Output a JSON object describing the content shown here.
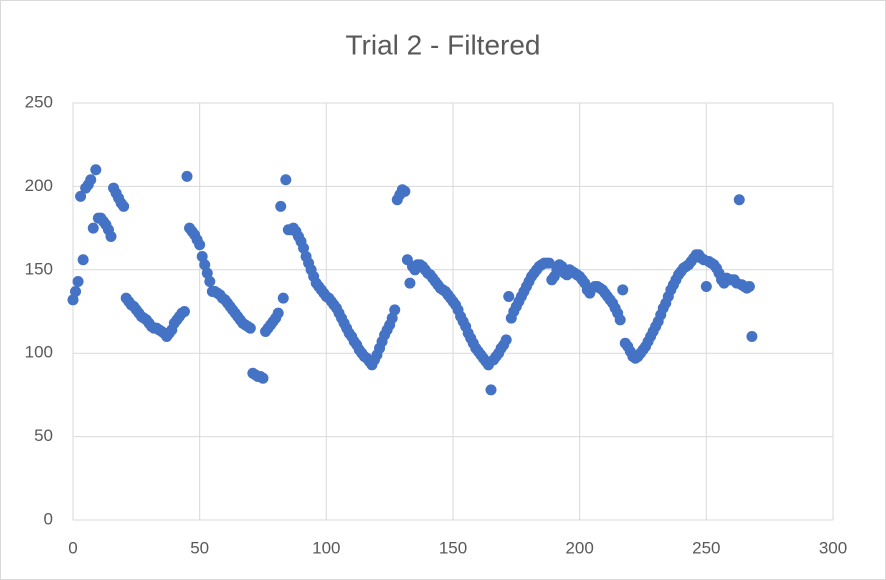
{
  "chart_data": {
    "type": "scatter",
    "title": "Trial 2 - Filtered",
    "x": [
      0,
      1,
      2,
      3,
      4,
      5,
      6,
      7,
      8,
      9,
      10,
      11,
      12,
      13,
      14,
      15,
      16,
      17,
      18,
      19,
      20,
      21,
      22,
      23,
      24,
      25,
      26,
      27,
      28,
      29,
      30,
      31,
      32,
      33,
      34,
      35,
      36,
      37,
      38,
      39,
      40,
      41,
      42,
      43,
      44,
      45,
      46,
      47,
      48,
      49,
      50,
      51,
      52,
      53,
      54,
      55,
      56,
      57,
      58,
      59,
      60,
      61,
      62,
      63,
      64,
      65,
      66,
      67,
      68,
      69,
      70,
      71,
      72,
      73,
      74,
      75,
      76,
      77,
      78,
      79,
      80,
      81,
      82,
      83,
      84,
      85,
      86,
      87,
      88,
      89,
      90,
      91,
      92,
      93,
      94,
      95,
      96,
      97,
      98,
      99,
      100,
      101,
      102,
      103,
      104,
      105,
      106,
      107,
      108,
      109,
      110,
      111,
      112,
      113,
      114,
      115,
      116,
      117,
      118,
      119,
      120,
      121,
      122,
      123,
      124,
      125,
      126,
      127,
      128,
      129,
      130,
      131,
      132,
      133,
      134,
      135,
      136,
      137,
      138,
      139,
      140,
      141,
      142,
      143,
      144,
      145,
      146,
      147,
      148,
      149,
      150,
      151,
      152,
      153,
      154,
      155,
      156,
      157,
      158,
      159,
      160,
      161,
      162,
      163,
      164,
      165,
      166,
      167,
      168,
      169,
      170,
      171,
      172,
      173,
      174,
      175,
      176,
      177,
      178,
      179,
      180,
      181,
      182,
      183,
      184,
      185,
      186,
      187,
      188,
      189,
      190,
      191,
      192,
      193,
      194,
      195,
      196,
      197,
      198,
      199,
      200,
      201,
      202,
      203,
      204,
      205,
      206,
      207,
      208,
      209,
      210,
      211,
      212,
      213,
      214,
      215,
      216,
      217,
      218,
      219,
      220,
      221,
      222,
      223,
      224,
      225,
      226,
      227,
      228,
      229,
      230,
      231,
      232,
      233,
      234,
      235,
      236,
      237,
      238,
      239,
      240,
      241,
      242,
      243,
      244,
      245,
      246,
      247,
      248,
      249,
      250,
      251,
      252,
      253,
      254,
      255,
      256,
      257,
      258,
      259,
      260,
      261,
      262,
      263,
      264,
      265,
      266,
      267,
      268
    ],
    "series": [
      {
        "color": "#4472c4",
        "values": [
          132,
          137,
          143,
          194,
          156,
          199,
          201,
          204,
          175,
          210,
          181,
          181,
          179,
          177,
          174,
          170,
          199,
          196,
          193,
          190,
          188,
          133,
          131,
          129,
          128,
          126,
          124,
          122,
          121,
          120,
          118,
          116,
          115,
          115,
          114,
          113,
          112,
          110,
          112,
          114,
          118,
          120,
          122,
          124,
          125,
          206,
          175,
          173,
          171,
          168,
          165,
          158,
          153,
          148,
          143,
          137,
          137,
          136,
          135,
          133,
          132,
          130,
          128,
          126,
          124,
          122,
          120,
          118,
          117,
          116,
          115,
          88,
          87,
          86,
          86,
          85,
          113,
          115,
          117,
          119,
          121,
          124,
          188,
          133,
          204,
          174,
          174,
          175,
          173,
          170,
          167,
          163,
          158,
          154,
          150,
          146,
          142,
          140,
          138,
          136,
          134,
          133,
          131,
          129,
          127,
          124,
          121,
          118,
          115,
          112,
          110,
          107,
          105,
          102,
          100,
          98,
          97,
          95,
          93,
          96,
          99,
          103,
          107,
          111,
          114,
          117,
          121,
          126,
          192,
          195,
          198,
          197,
          156,
          142,
          152,
          150,
          153,
          153,
          152,
          150,
          148,
          147,
          145,
          143,
          141,
          139,
          138,
          137,
          135,
          133,
          131,
          129,
          126,
          122,
          119,
          116,
          112,
          109,
          106,
          103,
          101,
          99,
          97,
          95,
          93,
          78,
          96,
          98,
          100,
          103,
          105,
          108,
          134,
          121,
          125,
          128,
          131,
          134,
          137,
          140,
          143,
          146,
          148,
          150,
          152,
          153,
          154,
          154,
          154,
          144,
          146,
          150,
          153,
          152,
          148,
          147,
          150,
          149,
          148,
          147,
          146,
          144,
          142,
          138,
          136,
          139,
          140,
          140,
          139,
          138,
          136,
          134,
          132,
          130,
          127,
          124,
          120,
          138,
          106,
          104,
          101,
          98,
          97,
          98,
          100,
          102,
          104,
          107,
          110,
          113,
          116,
          119,
          123,
          127,
          130,
          134,
          138,
          141,
          144,
          147,
          149,
          151,
          152,
          153,
          155,
          157,
          159,
          159,
          157,
          156,
          140,
          155,
          154,
          153,
          151,
          148,
          144,
          142,
          145,
          144,
          144,
          144,
          142,
          192,
          141,
          140,
          139,
          140,
          110
        ]
      }
    ],
    "xlim": [
      0,
      300
    ],
    "xticks": [
      0,
      50,
      100,
      150,
      200,
      250,
      300
    ],
    "ylim": [
      0,
      250
    ],
    "yticks": [
      0,
      50,
      100,
      150,
      200,
      250
    ],
    "grid": true
  }
}
